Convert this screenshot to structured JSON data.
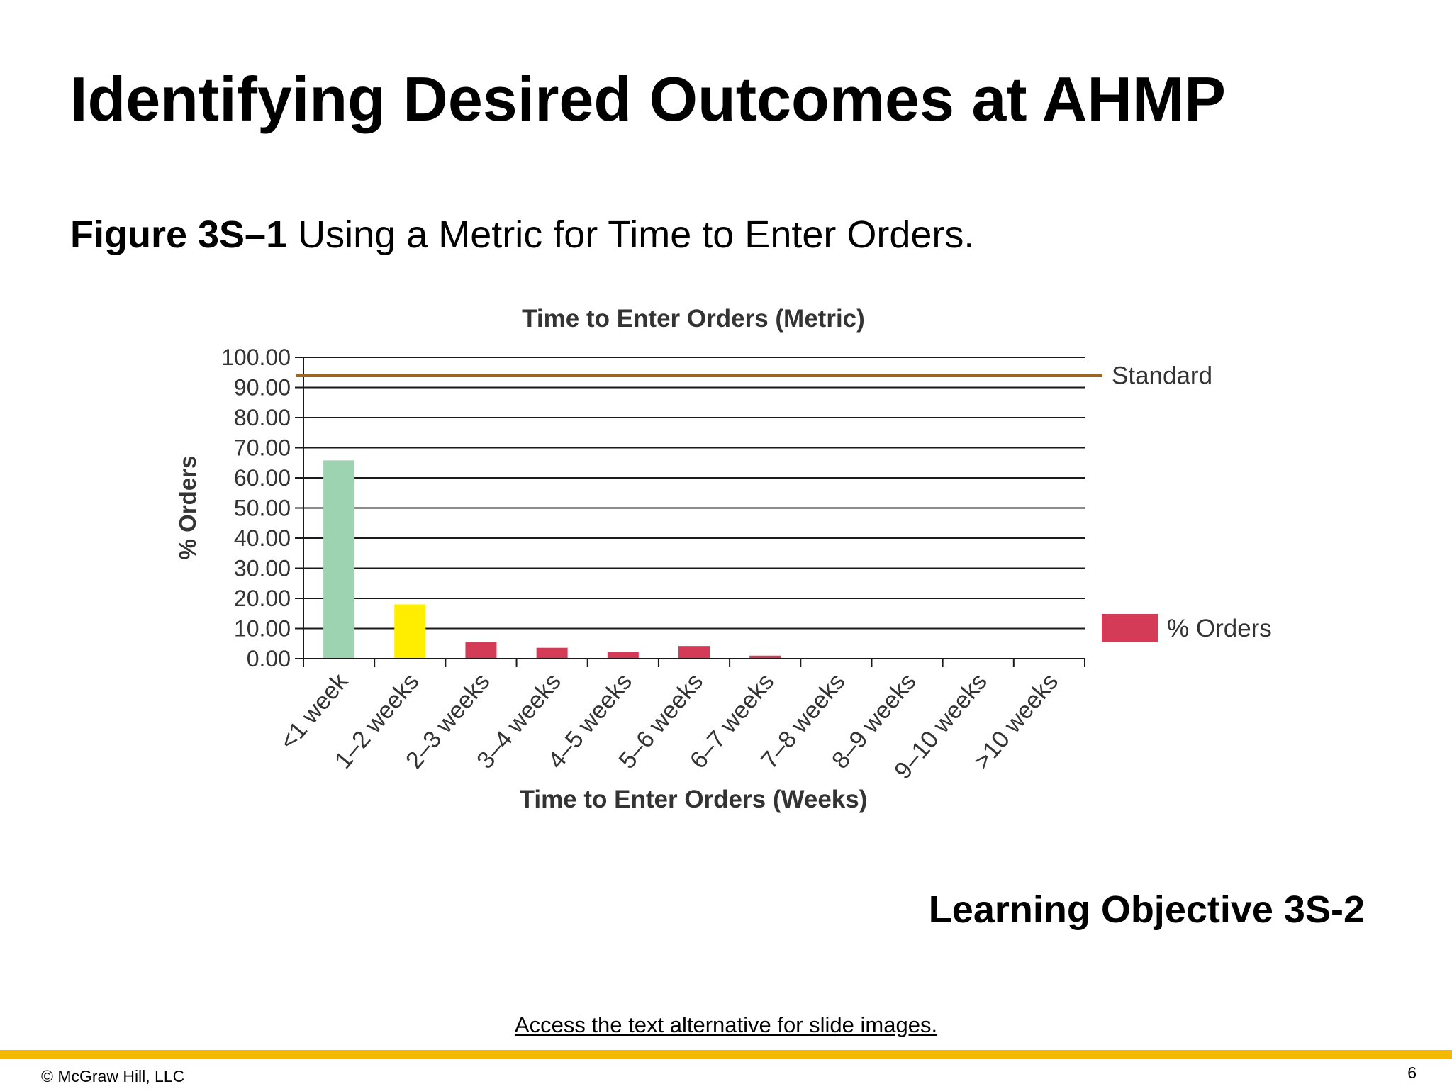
{
  "slide": {
    "title": "Identifying Desired Outcomes at AHMP",
    "figure_number": "Figure 3S–1",
    "figure_caption": " Using a Metric for Time to Enter Orders.",
    "learning_objective": "Learning Objective 3S-2",
    "access_link": "Access the text alternative for slide images.",
    "copyright": "© McGraw Hill, LLC",
    "page_number": "6",
    "accent_color": "#F5B800"
  },
  "chart_data": {
    "type": "bar",
    "title": "Time to Enter Orders (Metric)",
    "xlabel": "Time to Enter Orders (Weeks)",
    "ylabel": "% Orders",
    "ylim": [
      0,
      100
    ],
    "yticks": [
      "0.00",
      "10.00",
      "20.00",
      "30.00",
      "40.00",
      "50.00",
      "60.00",
      "70.00",
      "80.00",
      "90.00",
      "100.00"
    ],
    "grid": true,
    "categories": [
      "<1 week",
      "1–2 weeks",
      "2–3 weeks",
      "3–4 weeks",
      "4–5 weeks",
      "5–6 weeks",
      "6–7 weeks",
      "7–8 weeks",
      "8–9 weeks",
      "9–10 weeks",
      ">10 weeks"
    ],
    "series": [
      {
        "name": "% Orders",
        "values": [
          65.8,
          18.0,
          5.5,
          3.6,
          2.2,
          4.2,
          1.0,
          0,
          0,
          0,
          0
        ],
        "bar_colors": [
          "#9DD3B0",
          "#FFEE00",
          "#D43B56",
          "#D43B56",
          "#D43B56",
          "#D43B56",
          "#D43B56",
          "#D43B56",
          "#D43B56",
          "#D43B56",
          "#D43B56"
        ]
      }
    ],
    "standard_line": {
      "label": "Standard",
      "value": 94,
      "color": "#A0661F"
    },
    "legend": {
      "placement": "right",
      "label": "% Orders",
      "color": "#D43B56"
    }
  }
}
